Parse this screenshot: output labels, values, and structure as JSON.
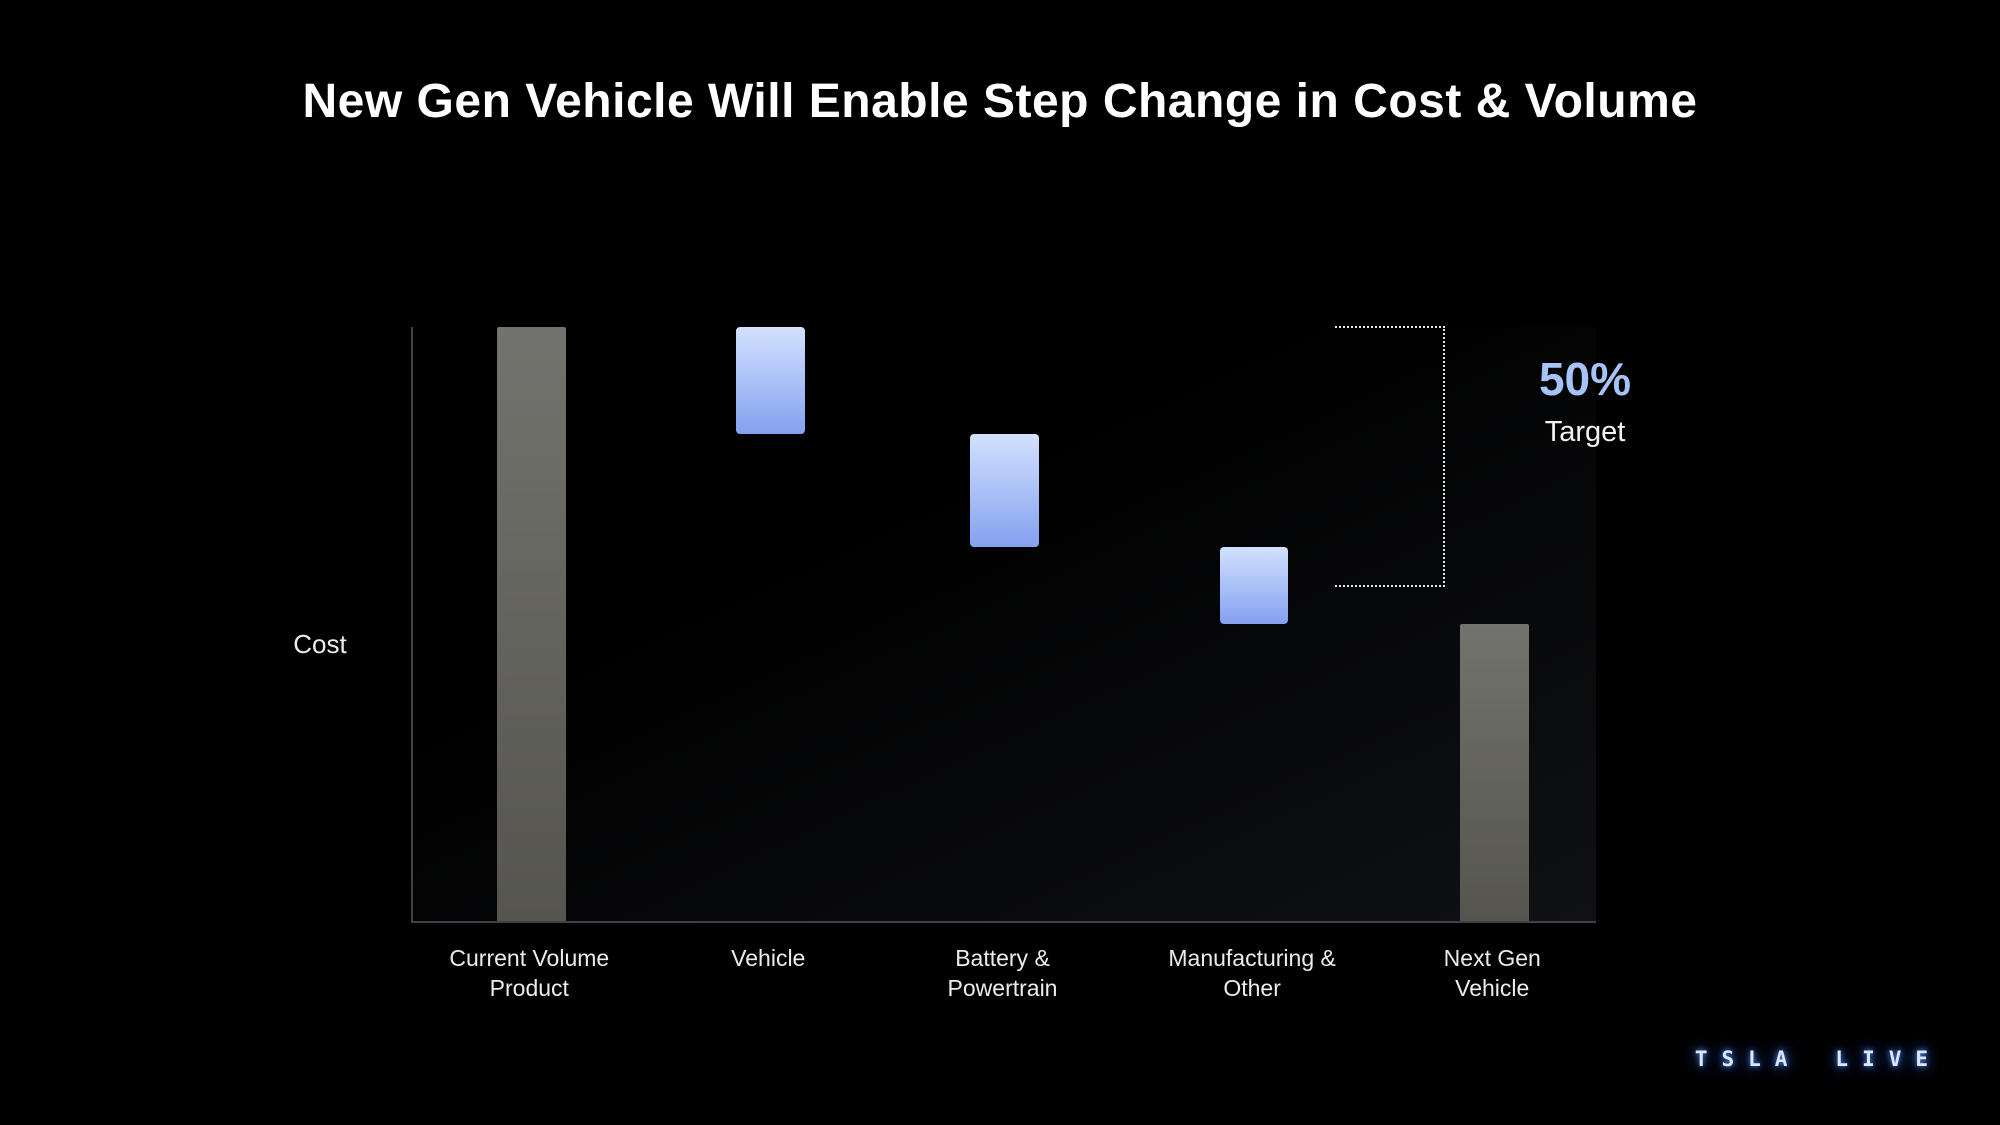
{
  "slide": {
    "title": "New Gen Vehicle Will Enable Step Change in Cost & Volume",
    "background_color": "#000000"
  },
  "chart_data": {
    "type": "bar",
    "subtype": "waterfall",
    "title": "New Gen Vehicle Will Enable Step Change in Cost & Volume",
    "ylabel": "Cost",
    "xlabel": "",
    "axis_range": [
      0,
      100
    ],
    "grid": false,
    "legend": false,
    "units_note": "values estimated from bar pixel heights as % of current volume product cost (no numeric axis shown)",
    "categories": [
      "Current Volume Product",
      "Vehicle",
      "Battery & Powertrain",
      "Manufacturing & Other",
      "Next Gen Vehicle"
    ],
    "bars": [
      {
        "label": "Current Volume Product",
        "display_label": "Current Volume\nProduct",
        "from": 0,
        "to": 100,
        "color": "gray"
      },
      {
        "label": "Vehicle",
        "display_label": "Vehicle",
        "from": 100,
        "to": 82,
        "color": "blue"
      },
      {
        "label": "Battery & Powertrain",
        "display_label": "Battery &\nPowertrain",
        "from": 82,
        "to": 63,
        "color": "blue"
      },
      {
        "label": "Manufacturing & Other",
        "display_label": "Manufacturing &\nOther",
        "from": 63,
        "to": 50,
        "color": "blue"
      },
      {
        "label": "Next Gen Vehicle",
        "display_label": "Next Gen\nVehicle",
        "from": 50,
        "to": 0,
        "color": "gray"
      }
    ],
    "annotation": {
      "value": "50%",
      "label": "Target"
    },
    "colors": {
      "gray_bar": "#64635e",
      "blue_bar_top": "#d3e1fe",
      "blue_bar_bottom": "#84a1f0",
      "annotation_blue": "#a6c3f8"
    },
    "layout": {
      "x_centers_pct": [
        10.0,
        30.2,
        50.0,
        71.1,
        91.4
      ],
      "bar_width_pct": 5.8,
      "legend_position": "none"
    }
  },
  "watermark": {
    "left": "TSLA",
    "right": "LIVE"
  }
}
